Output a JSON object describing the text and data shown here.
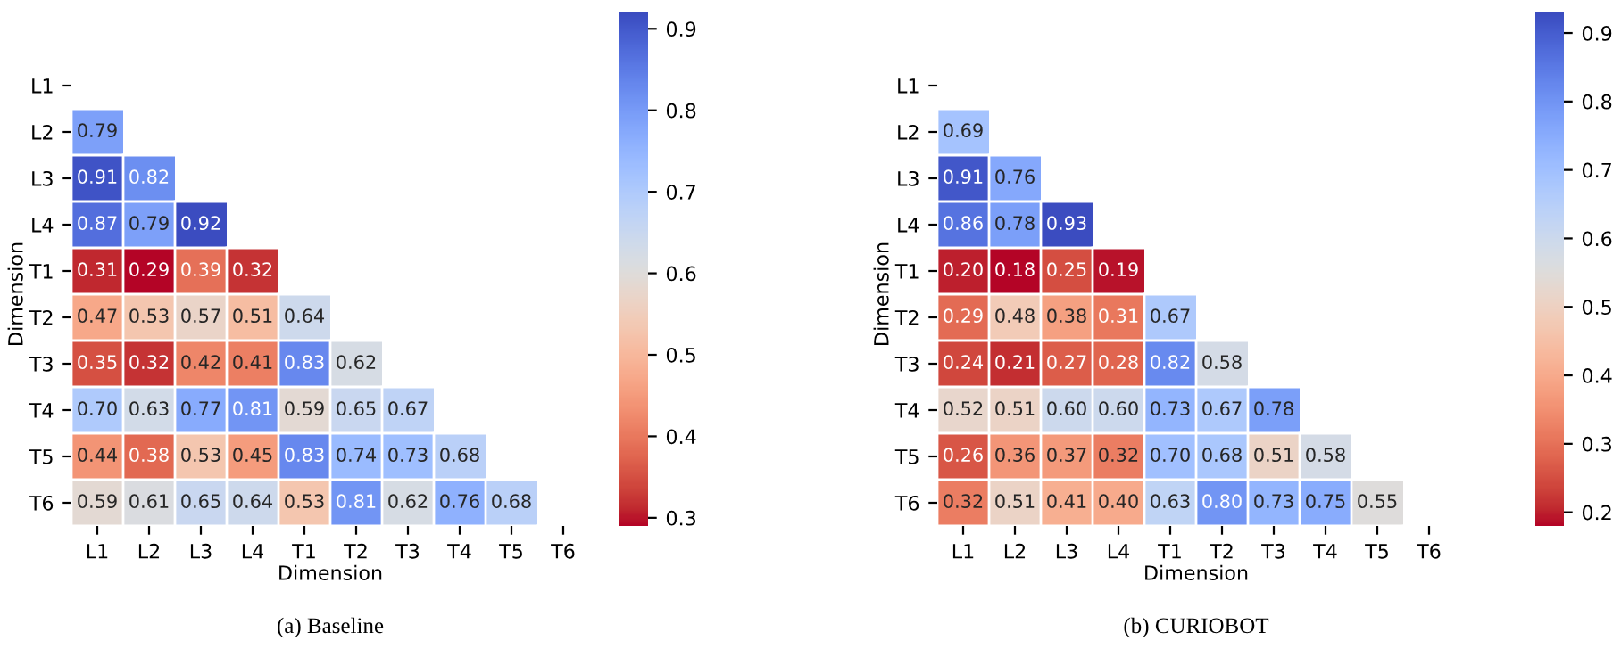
{
  "chart_data": [
    {
      "type": "heatmap",
      "title": "(a) Baseline",
      "xlabel": "Dimension",
      "ylabel": "Dimension",
      "categories": [
        "L1",
        "L2",
        "L3",
        "L4",
        "T1",
        "T2",
        "T3",
        "T4",
        "T5",
        "T6"
      ],
      "y_categories": [
        "L1",
        "L2",
        "L3",
        "L4",
        "T1",
        "T2",
        "T3",
        "T4",
        "T5",
        "T6"
      ],
      "cells": [
        [
          null,
          null,
          null,
          null,
          null,
          null,
          null,
          null,
          null,
          null
        ],
        [
          0.79,
          null,
          null,
          null,
          null,
          null,
          null,
          null,
          null,
          null
        ],
        [
          0.91,
          0.82,
          null,
          null,
          null,
          null,
          null,
          null,
          null,
          null
        ],
        [
          0.87,
          0.79,
          0.92,
          null,
          null,
          null,
          null,
          null,
          null,
          null
        ],
        [
          0.31,
          0.29,
          0.39,
          0.32,
          null,
          null,
          null,
          null,
          null,
          null
        ],
        [
          0.47,
          0.53,
          0.57,
          0.51,
          0.64,
          null,
          null,
          null,
          null,
          null
        ],
        [
          0.35,
          0.32,
          0.42,
          0.41,
          0.83,
          0.62,
          null,
          null,
          null,
          null
        ],
        [
          0.7,
          0.63,
          0.77,
          0.81,
          0.59,
          0.65,
          0.67,
          null,
          null,
          null
        ],
        [
          0.44,
          0.38,
          0.53,
          0.45,
          0.83,
          0.74,
          0.73,
          0.68,
          null,
          null
        ],
        [
          0.59,
          0.61,
          0.65,
          0.64,
          0.53,
          0.81,
          0.62,
          0.76,
          0.68,
          null
        ]
      ],
      "cell_labels": [
        [
          null,
          null,
          null,
          null,
          null,
          null,
          null,
          null,
          null,
          null
        ],
        [
          "0.79",
          null,
          null,
          null,
          null,
          null,
          null,
          null,
          null,
          null
        ],
        [
          "0.91",
          "0.82",
          null,
          null,
          null,
          null,
          null,
          null,
          null,
          null
        ],
        [
          "0.87",
          "0.79",
          "0.92",
          null,
          null,
          null,
          null,
          null,
          null,
          null
        ],
        [
          "0.31",
          "0.29",
          "0.39",
          "0.32",
          null,
          null,
          null,
          null,
          null,
          null
        ],
        [
          "0.47",
          "0.53",
          "0.57",
          "0.51",
          "0.64",
          null,
          null,
          null,
          null,
          null
        ],
        [
          "0.35",
          "0.32",
          "0.42",
          "0.41",
          "0.83",
          "0.62",
          null,
          null,
          null,
          null
        ],
        [
          "0.70",
          "0.63",
          "0.77",
          "0.81",
          "0.59",
          "0.65",
          "0.67",
          null,
          null,
          null
        ],
        [
          "0.44",
          "0.38",
          "0.53",
          "0.45",
          "0.83",
          "0.74",
          "0.73",
          "0.68",
          null,
          null
        ],
        [
          "0.59",
          "0.61",
          "0.65",
          "0.64",
          "0.53",
          "0.81",
          "0.62",
          "0.76",
          "0.68",
          null
        ]
      ],
      "clim": [
        0.29,
        0.92
      ],
      "cticks": [
        0.3,
        0.4,
        0.5,
        0.6,
        0.7,
        0.8,
        0.9
      ]
    },
    {
      "type": "heatmap",
      "title": "(b) CURIOBOT",
      "xlabel": "Dimension",
      "ylabel": "Dimension",
      "categories": [
        "L1",
        "L2",
        "L3",
        "L4",
        "T1",
        "T2",
        "T3",
        "T4",
        "T5",
        "T6"
      ],
      "y_categories": [
        "L1",
        "L2",
        "L3",
        "L4",
        "T1",
        "T2",
        "T3",
        "T4",
        "T5",
        "T6"
      ],
      "cells": [
        [
          null,
          null,
          null,
          null,
          null,
          null,
          null,
          null,
          null,
          null
        ],
        [
          0.69,
          null,
          null,
          null,
          null,
          null,
          null,
          null,
          null,
          null
        ],
        [
          0.91,
          0.76,
          null,
          null,
          null,
          null,
          null,
          null,
          null,
          null
        ],
        [
          0.86,
          0.78,
          0.93,
          null,
          null,
          null,
          null,
          null,
          null,
          null
        ],
        [
          0.2,
          0.18,
          0.25,
          0.19,
          null,
          null,
          null,
          null,
          null,
          null
        ],
        [
          0.29,
          0.48,
          0.38,
          0.31,
          0.67,
          null,
          null,
          null,
          null,
          null
        ],
        [
          0.24,
          0.21,
          0.27,
          0.28,
          0.82,
          0.58,
          null,
          null,
          null,
          null
        ],
        [
          0.52,
          0.51,
          0.6,
          0.6,
          0.73,
          0.67,
          0.78,
          null,
          null,
          null
        ],
        [
          0.26,
          0.36,
          0.37,
          0.32,
          0.7,
          0.68,
          0.51,
          0.58,
          null,
          null
        ],
        [
          0.32,
          0.51,
          0.41,
          0.4,
          0.63,
          0.8,
          0.73,
          0.75,
          0.55,
          null
        ]
      ],
      "cell_labels": [
        [
          null,
          null,
          null,
          null,
          null,
          null,
          null,
          null,
          null,
          null
        ],
        [
          "0.69",
          null,
          null,
          null,
          null,
          null,
          null,
          null,
          null,
          null
        ],
        [
          "0.91",
          "0.76",
          null,
          null,
          null,
          null,
          null,
          null,
          null,
          null
        ],
        [
          "0.86",
          "0.78",
          "0.93",
          null,
          null,
          null,
          null,
          null,
          null,
          null
        ],
        [
          "0.20",
          "0.18",
          "0.25",
          "0.19",
          null,
          null,
          null,
          null,
          null,
          null
        ],
        [
          "0.29",
          "0.48",
          "0.38",
          "0.31",
          "0.67",
          null,
          null,
          null,
          null,
          null
        ],
        [
          "0.24",
          "0.21",
          "0.27",
          "0.28",
          "0.82",
          "0.58",
          null,
          null,
          null,
          null
        ],
        [
          "0.52",
          "0.51",
          "0.60",
          "0.60",
          "0.73",
          "0.67",
          "0.78",
          null,
          null,
          null
        ],
        [
          "0.26",
          "0.36",
          "0.37",
          "0.32",
          "0.70",
          "0.68",
          "0.51",
          "0.58",
          null,
          null
        ],
        [
          "0.32",
          "0.51",
          "0.41",
          "0.40",
          "0.63",
          "0.80",
          "0.73",
          "0.75",
          "0.55",
          null
        ]
      ],
      "clim": [
        0.18,
        0.93
      ],
      "cticks": [
        0.2,
        0.3,
        0.4,
        0.5,
        0.6,
        0.7,
        0.8,
        0.9
      ]
    }
  ]
}
